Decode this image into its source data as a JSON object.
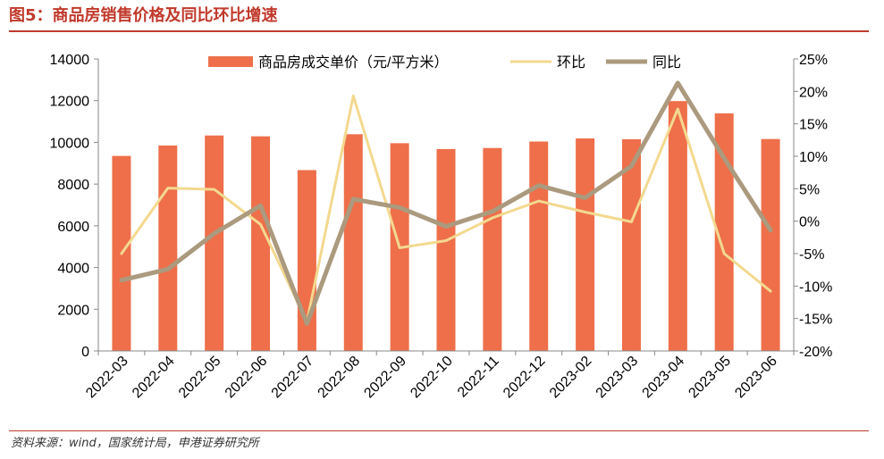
{
  "header": {
    "title": "图5：商品房销售价格及同比环比增速"
  },
  "footer": {
    "source": "资料来源：wind，国家统计局，申港证券研究所"
  },
  "colors": {
    "bar": "#ee6f4a",
    "mom": "#f3d98f",
    "yoy": "#ab9a7e",
    "title": "#c0392b"
  },
  "chart_data": {
    "type": "bar",
    "categories": [
      "2022-03",
      "2022-04",
      "2022-05",
      "2022-06",
      "2022-07",
      "2022-08",
      "2022-09",
      "2022-10",
      "2022-11",
      "2022-12",
      "2023-02",
      "2023-03",
      "2023-04",
      "2023-05",
      "2023-06"
    ],
    "legend_position": "top",
    "grid": false,
    "y_left": {
      "min": 0,
      "max": 14000,
      "ticks": [
        "0",
        "2000",
        "4000",
        "6000",
        "8000",
        "10000",
        "12000",
        "14000"
      ]
    },
    "y_right": {
      "min": -20,
      "max": 25,
      "ticks": [
        "-20%",
        "-15%",
        "-10%",
        "-5%",
        "0%",
        "5%",
        "10%",
        "15%",
        "20%",
        "25%"
      ]
    },
    "series": [
      {
        "name": "商品房成交单价（元/平方米）",
        "type": "bar",
        "axis": "left",
        "values": [
          9350,
          9850,
          10330,
          10290,
          8670,
          10390,
          9960,
          9680,
          9730,
          10040,
          10190,
          10150,
          11980,
          11390,
          10160
        ]
      },
      {
        "name": "环比",
        "type": "line",
        "axis": "right",
        "values": [
          -5.0,
          5.1,
          4.9,
          -0.5,
          -15.5,
          19.3,
          -4.1,
          -3.0,
          0.5,
          3.1,
          1.4,
          -0.1,
          17.3,
          -5.0,
          -10.8
        ]
      },
      {
        "name": "同比",
        "type": "line",
        "axis": "right",
        "values": [
          -9.1,
          -7.4,
          -1.9,
          2.4,
          -15.8,
          3.4,
          2.1,
          -0.8,
          1.5,
          5.5,
          3.6,
          8.5,
          21.3,
          9.7,
          -1.4
        ]
      }
    ]
  }
}
